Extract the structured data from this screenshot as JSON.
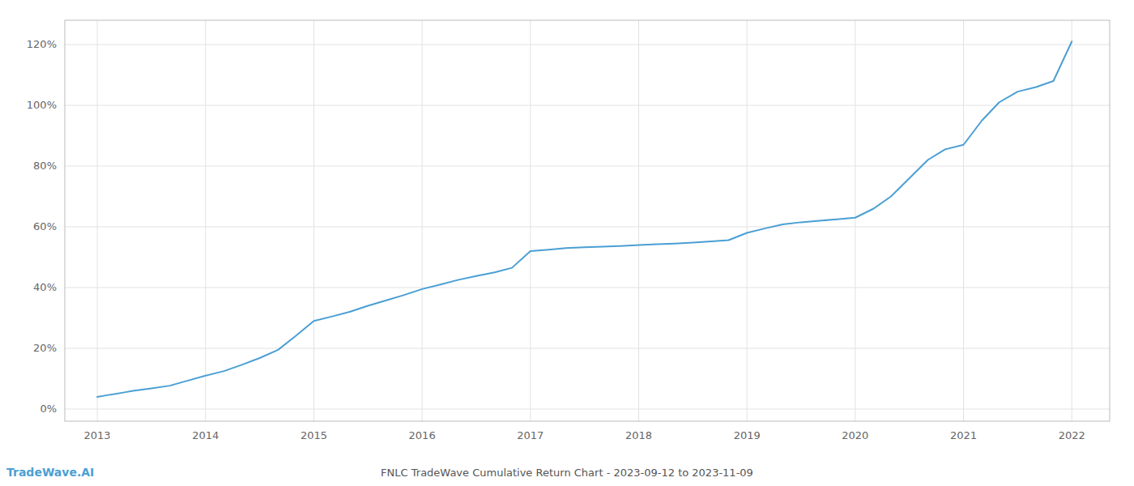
{
  "chart_data": {
    "type": "line",
    "title": "FNLC TradeWave Cumulative Return Chart - 2023-09-12 to 2023-11-09",
    "annotations": [
      "TradeWave.AI"
    ],
    "color": "#4a9fd4",
    "x": [
      2013.0,
      2013.08,
      2013.17,
      2013.25,
      2013.33,
      2013.5,
      2013.67,
      2013.83,
      2014.0,
      2014.17,
      2014.33,
      2014.5,
      2014.67,
      2014.83,
      2015.0,
      2015.17,
      2015.33,
      2015.5,
      2015.67,
      2015.83,
      2016.0,
      2016.17,
      2016.33,
      2016.5,
      2016.67,
      2016.83,
      2017.0,
      2017.17,
      2017.33,
      2017.5,
      2017.67,
      2017.83,
      2018.0,
      2018.17,
      2018.33,
      2018.5,
      2018.67,
      2018.83,
      2019.0,
      2019.17,
      2019.33,
      2019.5,
      2019.67,
      2019.83,
      2020.0,
      2020.17,
      2020.33,
      2020.5,
      2020.67,
      2020.83,
      2021.0,
      2021.17,
      2021.33,
      2021.5,
      2021.67,
      2021.83,
      2022.0
    ],
    "values": [
      0.04,
      0.045,
      0.05,
      0.055,
      0.06,
      0.068,
      0.077,
      0.093,
      0.11,
      0.125,
      0.145,
      0.168,
      0.195,
      0.24,
      0.29,
      0.305,
      0.32,
      0.34,
      0.358,
      0.375,
      0.395,
      0.41,
      0.425,
      0.438,
      0.45,
      0.465,
      0.52,
      0.525,
      0.53,
      0.533,
      0.535,
      0.537,
      0.54,
      0.543,
      0.545,
      0.548,
      0.552,
      0.556,
      0.58,
      0.595,
      0.608,
      0.615,
      0.62,
      0.625,
      0.63,
      0.66,
      0.7,
      0.76,
      0.82,
      0.855,
      0.87,
      0.95,
      1.01,
      1.045,
      1.06,
      1.08,
      1.21
    ],
    "xlim": [
      2012.7,
      2022.35
    ],
    "xticks": [
      2013,
      2014,
      2015,
      2016,
      2017,
      2018,
      2019,
      2020,
      2021,
      2022
    ],
    "ylim": [
      -0.04,
      1.28
    ],
    "yticks": [
      {
        "value": 0.0,
        "label": "0%"
      },
      {
        "value": 0.2,
        "label": "20%"
      },
      {
        "value": 0.4,
        "label": "40%"
      },
      {
        "value": 0.6,
        "label": "60%"
      },
      {
        "value": 0.8,
        "label": "80%"
      },
      {
        "value": 1.0,
        "label": "100%"
      },
      {
        "value": 1.2,
        "label": "120%"
      }
    ],
    "grid": true
  }
}
